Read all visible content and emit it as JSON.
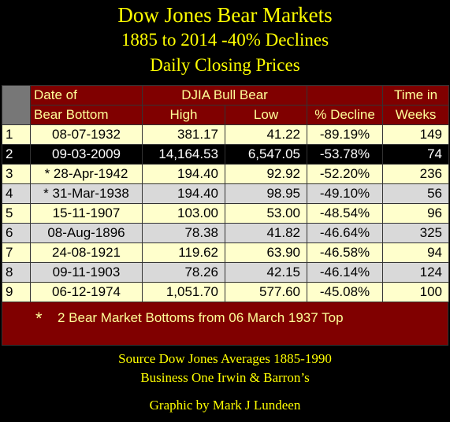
{
  "title": {
    "line1": "Dow Jones Bear Markets",
    "line2": "1885 to 2014 -40% Declines",
    "line3": "Daily Closing Prices"
  },
  "chart_data": {
    "type": "table",
    "headers": {
      "date_line1": "Date of",
      "date_line2": "Bear Bottom",
      "djia": "DJIA Bull Bear",
      "high": "High",
      "low": "Low",
      "decline": "% Decline",
      "time_line1": "Time in",
      "time_line2": "Weeks"
    },
    "rows": [
      {
        "rank": "1",
        "date": "08-07-1932",
        "high": "381.17",
        "low": "41.22",
        "decline": "-89.19%",
        "weeks": "149"
      },
      {
        "rank": "2",
        "date": "09-03-2009",
        "high": "14,164.53",
        "low": "6,547.05",
        "decline": "-53.78%",
        "weeks": "74"
      },
      {
        "rank": "3",
        "date": "* 28-Apr-1942",
        "high": "194.40",
        "low": "92.92",
        "decline": "-52.20%",
        "weeks": "236"
      },
      {
        "rank": "4",
        "date": "* 31-Mar-1938",
        "high": "194.40",
        "low": "98.95",
        "decline": "-49.10%",
        "weeks": "56"
      },
      {
        "rank": "5",
        "date": "15-11-1907",
        "high": "103.00",
        "low": "53.00",
        "decline": "-48.54%",
        "weeks": "96"
      },
      {
        "rank": "6",
        "date": "08-Aug-1896",
        "high": "78.38",
        "low": "41.82",
        "decline": "-46.64%",
        "weeks": "325"
      },
      {
        "rank": "7",
        "date": "24-08-1921",
        "high": "119.62",
        "low": "63.90",
        "decline": "-46.58%",
        "weeks": "94"
      },
      {
        "rank": "8",
        "date": "09-11-1903",
        "high": "78.26",
        "low": "42.15",
        "decline": "-46.14%",
        "weeks": "124"
      },
      {
        "rank": "9",
        "date": "06-12-1974",
        "high": "1,051.70",
        "low": "577.60",
        "decline": "-45.08%",
        "weeks": "100"
      }
    ],
    "highlighted_row": 2,
    "grey_rows": [
      4,
      6,
      8
    ]
  },
  "footnote": {
    "star": "*",
    "text": "2 Bear Market Bottoms from 06 March 1937 Top"
  },
  "source": {
    "line1": "Source Dow Jones Averages 1885-1990",
    "line2": "Business One Irwin & Barron’s",
    "line3": "Graphic by Mark J Lundeen"
  },
  "colors": {
    "background": "#000000",
    "title": "#ffff00",
    "header_bg": "#800000",
    "header_text": "#ffff99",
    "row_bg": "#ffffcc",
    "alt_row_bg": "#d9d9d9",
    "highlight_bg": "#000000"
  }
}
